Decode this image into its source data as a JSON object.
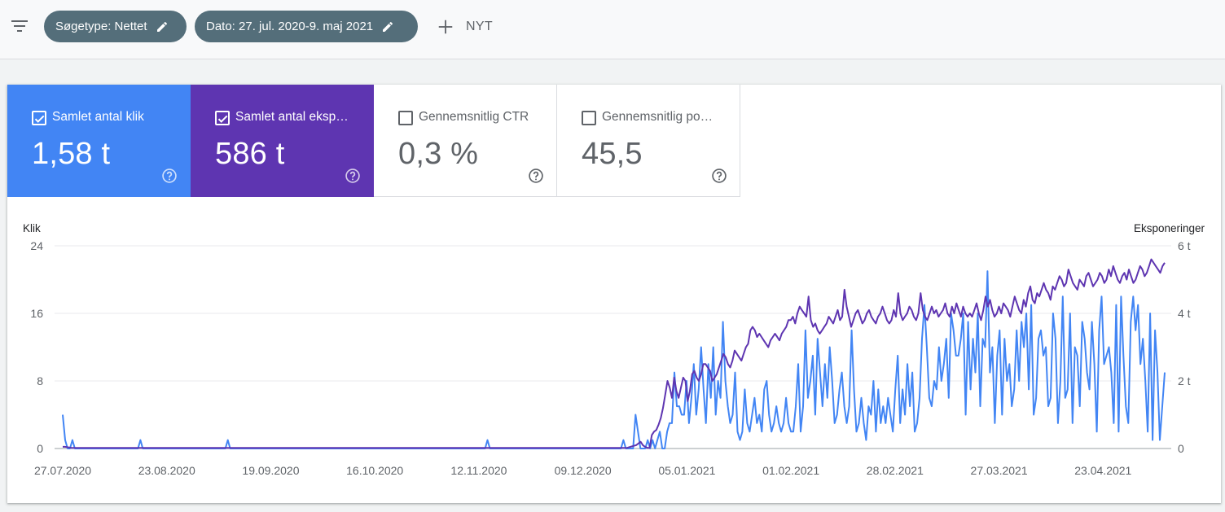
{
  "filters": {
    "search_type_chip": "Søgetype: Nettet",
    "date_chip": "Dato: 27. jul. 2020-9. maj 2021",
    "new_label": "NYT"
  },
  "metrics": [
    {
      "label": "Samlet antal klik",
      "value": "1,58 t",
      "checked": true,
      "color": "#4285f4"
    },
    {
      "label": "Samlet antal eksponeringer",
      "label_display": "Samlet antal eksp…",
      "value": "586 t",
      "checked": true,
      "color": "#5e35b1"
    },
    {
      "label": "Gennemsnitlig CTR",
      "value": "0,3 %",
      "checked": false
    },
    {
      "label": "Gennemsnitlig position",
      "label_display": "Gennemsnitlig po…",
      "value": "45,5",
      "checked": false
    }
  ],
  "chart_data": {
    "type": "line",
    "left_axis_title": "Klik",
    "right_axis_title": "Eksponeringer",
    "left_ticks": [
      "0",
      "8",
      "16",
      "24"
    ],
    "right_ticks": [
      "0",
      "2 t",
      "4 t",
      "6 t"
    ],
    "ylim_left": [
      0,
      24
    ],
    "ylim_right": [
      0,
      6000
    ],
    "x_ticks": [
      "27.07.2020",
      "23.08.2020",
      "19.09.2020",
      "16.10.2020",
      "12.11.2020",
      "09.12.2020",
      "05.01.2021",
      "01.02.2021",
      "28.02.2021",
      "27.03.2021",
      "23.04.2021"
    ],
    "x_range": [
      "2020-07-27",
      "2021-05-09"
    ],
    "grid": true,
    "series": [
      {
        "name": "Samlet antal klik",
        "axis": "left",
        "color": "#4285f4",
        "values": [
          4,
          1,
          0,
          0,
          1,
          0,
          0,
          0,
          0,
          0,
          0,
          0,
          0,
          0,
          0,
          0,
          0,
          0,
          0,
          0,
          0,
          0,
          0,
          0,
          0,
          0,
          0,
          0,
          0,
          0,
          0,
          0,
          1,
          0,
          0,
          0,
          0,
          0,
          0,
          0,
          0,
          0,
          0,
          0,
          0,
          0,
          0,
          0,
          0,
          0,
          0,
          0,
          0,
          0,
          0,
          0,
          0,
          0,
          0,
          0,
          0,
          0,
          0,
          0,
          0,
          0,
          0,
          0,
          1,
          0,
          0,
          0,
          0,
          0,
          0,
          0,
          0,
          0,
          0,
          0,
          0,
          0,
          0,
          0,
          0,
          0,
          0,
          0,
          0,
          0,
          0,
          0,
          0,
          0,
          0,
          0,
          0,
          0,
          0,
          0,
          0,
          0,
          0,
          0,
          0,
          0,
          0,
          0,
          0,
          0,
          0,
          0,
          0,
          0,
          0,
          0,
          0,
          0,
          0,
          0,
          0,
          0,
          0,
          0,
          0,
          0,
          0,
          0,
          0,
          0,
          0,
          0,
          0,
          0,
          0,
          0,
          0,
          0,
          0,
          0,
          0,
          0,
          0,
          0,
          0,
          0,
          0,
          0,
          0,
          0,
          0,
          0,
          0,
          0,
          0,
          0,
          0,
          0,
          0,
          0,
          0,
          0,
          0,
          0,
          0,
          0,
          0,
          0,
          0,
          0,
          0,
          0,
          0,
          0,
          0,
          1,
          0,
          0,
          0,
          0,
          0,
          0,
          0,
          0,
          0,
          0,
          0,
          0,
          0,
          0,
          0,
          0,
          0,
          0,
          0,
          0,
          0,
          0,
          0,
          0,
          0,
          0,
          0,
          0,
          0,
          0,
          0,
          0,
          0,
          0,
          0,
          0,
          0,
          0,
          0,
          0,
          0,
          0,
          0,
          0,
          0,
          0,
          0,
          0,
          0,
          0,
          0,
          0,
          0,
          0,
          0,
          1,
          0,
          0,
          0,
          0,
          4,
          2,
          0,
          0,
          0,
          1,
          0,
          1,
          0,
          1,
          2,
          0,
          0,
          2,
          3,
          3,
          9,
          5,
          5,
          4,
          4,
          8,
          3,
          6,
          10,
          4,
          7,
          12,
          7,
          3,
          10,
          6,
          12,
          4,
          8,
          6,
          15,
          8,
          5,
          3,
          4,
          9,
          2,
          1,
          2,
          7,
          3,
          2,
          4,
          6,
          3,
          4,
          2,
          7,
          8,
          4,
          2,
          3,
          5,
          3,
          2,
          3,
          6,
          3,
          2,
          2,
          5,
          10,
          2,
          5,
          14,
          6,
          8,
          11,
          4,
          13,
          9,
          5,
          10,
          6,
          12,
          8,
          3,
          4,
          7,
          9,
          5,
          3,
          5,
          14,
          7,
          2,
          3,
          6,
          3,
          1,
          5,
          4,
          8,
          2,
          7,
          3,
          5,
          3,
          6,
          4,
          2,
          7,
          11,
          3,
          7,
          4,
          10,
          5,
          9,
          2,
          3,
          6,
          13,
          17,
          12,
          6,
          5,
          8,
          7,
          12,
          8,
          10,
          13,
          6,
          16,
          14,
          11,
          11,
          13,
          16,
          4,
          15,
          7,
          13,
          9,
          16,
          5,
          13,
          12,
          21,
          9,
          12,
          3,
          11,
          14,
          4,
          13,
          8,
          10,
          5,
          7,
          14,
          8,
          15,
          12,
          16,
          7,
          17,
          4,
          6,
          13,
          14,
          11,
          12,
          5,
          6,
          16,
          13,
          3,
          8,
          18,
          6,
          7,
          16,
          3,
          12,
          11,
          5,
          15,
          13,
          9,
          7,
          15,
          10,
          2,
          14,
          18,
          10,
          11,
          12,
          9,
          3,
          17,
          2,
          18,
          11,
          5,
          3,
          15,
          18,
          14,
          17,
          10,
          13,
          8,
          2,
          16,
          1,
          14,
          9,
          1,
          5,
          9
        ]
      },
      {
        "name": "Samlet antal eksponeringer",
        "axis": "right",
        "color": "#5e35b1",
        "values": [
          50,
          50,
          40,
          30,
          20,
          20,
          20,
          20,
          20,
          20,
          20,
          20,
          20,
          20,
          20,
          20,
          20,
          20,
          20,
          20,
          20,
          20,
          20,
          20,
          20,
          20,
          20,
          20,
          20,
          20,
          20,
          20,
          20,
          20,
          20,
          20,
          20,
          20,
          20,
          20,
          20,
          20,
          20,
          20,
          20,
          20,
          20,
          20,
          20,
          20,
          20,
          20,
          20,
          20,
          20,
          20,
          20,
          20,
          20,
          20,
          20,
          20,
          20,
          20,
          20,
          20,
          20,
          20,
          20,
          20,
          20,
          20,
          20,
          20,
          20,
          20,
          20,
          20,
          20,
          20,
          20,
          20,
          20,
          20,
          20,
          20,
          20,
          20,
          20,
          20,
          20,
          20,
          20,
          20,
          20,
          20,
          20,
          20,
          20,
          20,
          20,
          20,
          20,
          20,
          20,
          20,
          20,
          20,
          20,
          20,
          20,
          20,
          20,
          20,
          20,
          20,
          20,
          20,
          20,
          20,
          20,
          20,
          20,
          20,
          20,
          20,
          20,
          20,
          20,
          20,
          20,
          20,
          20,
          20,
          20,
          20,
          20,
          20,
          20,
          20,
          20,
          20,
          20,
          20,
          20,
          20,
          20,
          20,
          20,
          20,
          20,
          20,
          20,
          20,
          20,
          20,
          20,
          20,
          20,
          20,
          20,
          20,
          20,
          20,
          20,
          20,
          20,
          20,
          20,
          20,
          20,
          20,
          20,
          20,
          20,
          20,
          20,
          20,
          20,
          20,
          20,
          20,
          20,
          20,
          20,
          20,
          20,
          20,
          20,
          20,
          20,
          20,
          20,
          20,
          20,
          20,
          20,
          20,
          20,
          20,
          20,
          20,
          20,
          20,
          20,
          20,
          20,
          20,
          20,
          20,
          20,
          20,
          20,
          20,
          20,
          20,
          20,
          20,
          20,
          20,
          20,
          20,
          20,
          20,
          20,
          20,
          20,
          20,
          20,
          20,
          20,
          20,
          20,
          20,
          20,
          20,
          20,
          20,
          20,
          20,
          20,
          20,
          20,
          20,
          20,
          20,
          20,
          20,
          20,
          20,
          20,
          20,
          20,
          40,
          60,
          80,
          100,
          150,
          200,
          100,
          50,
          20,
          20,
          400,
          500,
          550,
          700,
          900,
          1200,
          1600,
          2000,
          1800,
          1500,
          2100,
          1700,
          1500,
          1800,
          2100,
          2000,
          1400,
          1700,
          2200,
          2300,
          2100,
          2000,
          2200,
          2500,
          2500,
          2400,
          2300,
          2000,
          2100,
          2200,
          2400,
          2600,
          2800,
          2700,
          2500,
          2400,
          2600,
          2900,
          2800,
          2700,
          2600,
          2800,
          3000,
          3100,
          3500,
          3600,
          3500,
          3300,
          3400,
          3300,
          3200,
          3100,
          3000,
          3200,
          3300,
          3400,
          3300,
          3200,
          3400,
          3500,
          3600,
          3800,
          3800,
          3900,
          3700,
          4000,
          4200,
          4100,
          4000,
          3900,
          4500,
          3800,
          3600,
          3700,
          3500,
          3400,
          3500,
          3600,
          3700,
          3900,
          3800,
          3700,
          3900,
          4100,
          3800,
          3900,
          4700,
          4200,
          3900,
          3600,
          3800,
          4000,
          4100,
          3900,
          3700,
          3800,
          4000,
          4100,
          3900,
          3800,
          3700,
          3900,
          4000,
          4200,
          4000,
          3800,
          3700,
          3800,
          4100,
          3900,
          4600,
          4000,
          3800,
          3900,
          4000,
          4200,
          4100,
          3900,
          3800,
          4000,
          4600,
          4100,
          3900,
          3800,
          4000,
          4200,
          4000,
          4100,
          3900,
          4000,
          4100,
          4300,
          4000,
          3900,
          4200,
          4000,
          4300,
          4100,
          3900,
          4200,
          4000,
          3900,
          4000,
          3900,
          4100,
          4300,
          4000,
          3800,
          4100,
          4500,
          4200,
          4400,
          4100,
          3900,
          4000,
          4200,
          4000,
          4300,
          4200,
          4100,
          3900,
          4200,
          4500,
          4300,
          4100,
          4000,
          4400,
          4200,
          4600,
          4800,
          4400,
          4300,
          4600,
          4500,
          4700,
          4900,
          4700,
          4600,
          4400,
          4800,
          4700,
          4900,
          5100,
          5000,
          4800,
          4900,
          5300,
          5100,
          4900,
          4800,
          4700,
          5000,
          4900,
          4800,
          5100,
          5200,
          5000,
          4800,
          4900,
          5000,
          5200,
          5100,
          4900,
          5000,
          5300,
          5100,
          5400,
          5200,
          5000,
          4900,
          5100,
          5200,
          5000,
          5300,
          5100,
          4900,
          5000,
          5200,
          5400,
          5300,
          5100,
          5200,
          5400,
          5600,
          5500,
          5400,
          5300,
          5200,
          5400,
          5500
        ]
      }
    ]
  }
}
